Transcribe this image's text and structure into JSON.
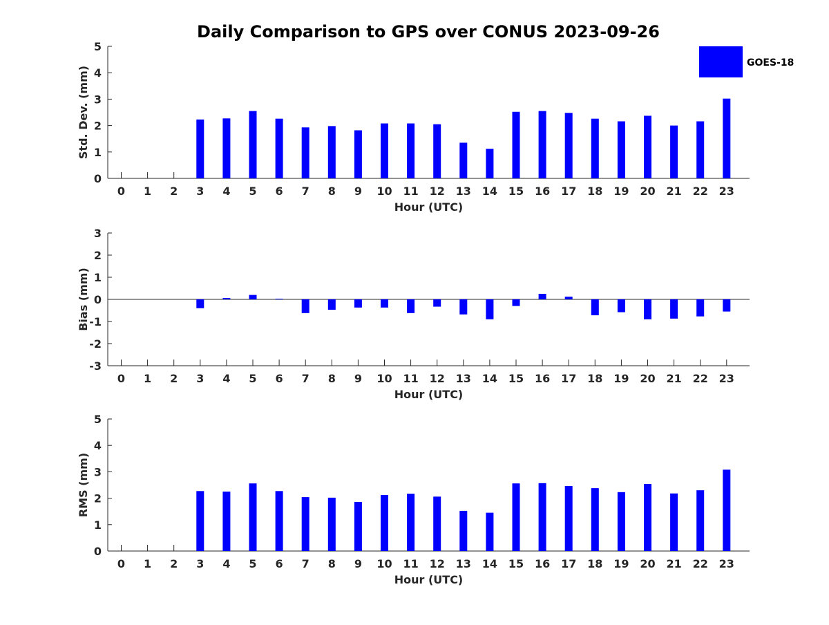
{
  "chart_data": {
    "type": "bar",
    "title": "Daily Comparison to GPS over CONUS 2023-09-26",
    "series_name": "GOES-18",
    "color": "#0000ff",
    "legend_position": "top-right",
    "categories": [
      "0",
      "1",
      "2",
      "3",
      "4",
      "5",
      "6",
      "7",
      "8",
      "9",
      "10",
      "11",
      "12",
      "13",
      "14",
      "15",
      "16",
      "17",
      "18",
      "19",
      "20",
      "21",
      "22",
      "23"
    ],
    "panels": [
      {
        "id": "std",
        "ylabel": "Std. Dev. (mm)",
        "xlabel": "Hour (UTC)",
        "ylim": [
          0,
          5
        ],
        "yticks": [
          "0",
          "1",
          "2",
          "3",
          "4",
          "5"
        ],
        "values": [
          null,
          null,
          null,
          2.23,
          2.27,
          2.55,
          2.26,
          1.93,
          1.98,
          1.82,
          2.08,
          2.08,
          2.05,
          1.35,
          1.12,
          2.52,
          2.55,
          2.48,
          2.26,
          2.16,
          2.37,
          2.0,
          2.16,
          3.02
        ]
      },
      {
        "id": "bias",
        "ylabel": "Bias (mm)",
        "xlabel": "Hour (UTC)",
        "ylim": [
          -3,
          3
        ],
        "yticks": [
          "-3",
          "-2",
          "-1",
          "0",
          "1",
          "2",
          "3"
        ],
        "values": [
          null,
          null,
          null,
          -0.4,
          0.06,
          0.2,
          0.03,
          -0.62,
          -0.47,
          -0.37,
          -0.37,
          -0.62,
          -0.33,
          -0.68,
          -0.9,
          -0.3,
          0.25,
          0.12,
          -0.72,
          -0.58,
          -0.9,
          -0.87,
          -0.77,
          -0.55
        ]
      },
      {
        "id": "rms",
        "ylabel": "RMS (mm)",
        "xlabel": "Hour (UTC)",
        "ylim": [
          0,
          5
        ],
        "yticks": [
          "0",
          "1",
          "2",
          "3",
          "4",
          "5"
        ],
        "values": [
          null,
          null,
          null,
          2.27,
          2.25,
          2.56,
          2.27,
          2.04,
          2.02,
          1.86,
          2.12,
          2.17,
          2.06,
          1.52,
          1.45,
          2.56,
          2.57,
          2.46,
          2.38,
          2.23,
          2.54,
          2.18,
          2.3,
          3.08
        ]
      }
    ]
  }
}
